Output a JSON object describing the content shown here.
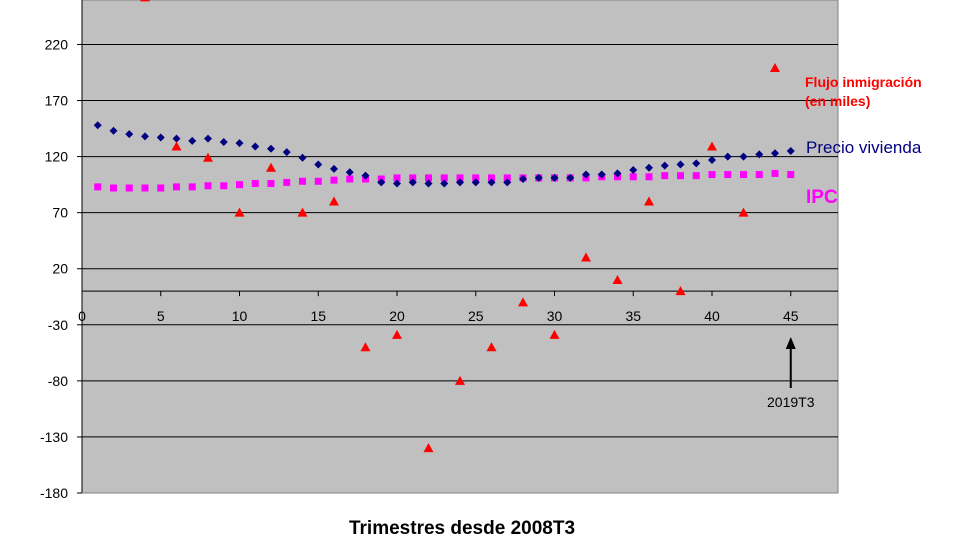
{
  "chart_data": {
    "type": "scatter",
    "xlabel": "Trimestres desde 2008T3",
    "ylabel": "",
    "xlim": [
      0,
      48
    ],
    "ylim": [
      -180,
      265
    ],
    "x_ticks": [
      0,
      5,
      10,
      15,
      20,
      25,
      30,
      35,
      40,
      45
    ],
    "x_tick_labels": [
      "0",
      "5",
      "10",
      "15",
      "20",
      "25",
      "30",
      "35",
      "40",
      "45"
    ],
    "y_ticks": [
      220,
      170,
      120,
      70,
      20,
      -30,
      -80,
      -130,
      -180
    ],
    "y_tick_labels": [
      "220",
      "170",
      "120",
      "70",
      "20",
      "-30",
      "-80",
      "-130",
      "-180"
    ],
    "grid": true,
    "plot_background": "#c0c0c0",
    "legend_placement": "right",
    "annotation": {
      "text": "2019T3",
      "x": 45
    },
    "series": [
      {
        "name": "Flujo inmigración (en miles)",
        "legend_lines": [
          "Flujo inmigración",
          "(en miles)"
        ],
        "color": "#ff0000",
        "marker": "triangle",
        "x": [
          4,
          6,
          8,
          10,
          12,
          14,
          16,
          18,
          20,
          22,
          24,
          26,
          28,
          30,
          32,
          34,
          36,
          38,
          40,
          42,
          44
        ],
        "y": [
          262,
          129,
          119,
          70,
          110,
          70,
          80,
          -50,
          -39,
          -140,
          -80,
          -50,
          -10,
          -39,
          30,
          10,
          80,
          0,
          129,
          70,
          199
        ]
      },
      {
        "name": "Precio vivienda",
        "legend_lines": [
          "Precio vivienda"
        ],
        "color": "#000080",
        "marker": "diamond",
        "x": [
          1,
          2,
          3,
          4,
          5,
          6,
          7,
          8,
          9,
          10,
          11,
          12,
          13,
          14,
          15,
          16,
          17,
          18,
          19,
          20,
          21,
          22,
          23,
          24,
          25,
          26,
          27,
          28,
          29,
          30,
          31,
          32,
          33,
          34,
          35,
          36,
          37,
          38,
          39,
          40,
          41,
          42,
          43,
          44,
          45
        ],
        "y": [
          148,
          143,
          140,
          138,
          137,
          136,
          134,
          136,
          133,
          132,
          129,
          127,
          124,
          119,
          113,
          109,
          106,
          103,
          97,
          96,
          97,
          96,
          96,
          97,
          97,
          97,
          97,
          100,
          101,
          101,
          101,
          104,
          104,
          105,
          108,
          110,
          112,
          113,
          114,
          117,
          120,
          120,
          122,
          123,
          125
        ]
      },
      {
        "name": "IPC",
        "legend_lines": [
          "IPC"
        ],
        "color": "#ff00ff",
        "marker": "square",
        "x": [
          1,
          2,
          3,
          4,
          5,
          6,
          7,
          8,
          9,
          10,
          11,
          12,
          13,
          14,
          15,
          16,
          17,
          18,
          19,
          20,
          21,
          22,
          23,
          24,
          25,
          26,
          27,
          28,
          29,
          30,
          31,
          32,
          33,
          34,
          35,
          36,
          37,
          38,
          39,
          40,
          41,
          42,
          43,
          44,
          45
        ],
        "y": [
          93,
          92,
          92,
          92,
          92,
          93,
          93,
          94,
          94,
          95,
          96,
          96,
          97,
          98,
          98,
          99,
          100,
          100,
          100,
          101,
          101,
          101,
          101,
          101,
          101,
          101,
          101,
          101,
          101,
          101,
          101,
          101,
          102,
          102,
          102,
          102,
          103,
          103,
          103,
          104,
          104,
          104,
          104,
          105,
          104
        ]
      }
    ]
  }
}
